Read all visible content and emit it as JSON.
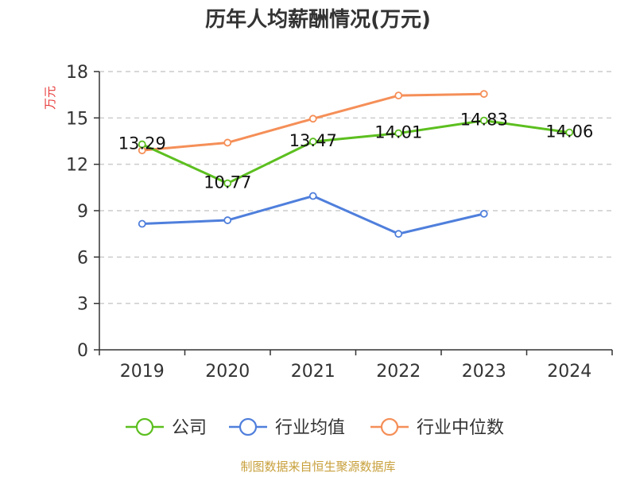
{
  "chart_data": {
    "type": "line",
    "title": "历年人均薪酬情况(万元)",
    "ylabel": "万元",
    "ylim": [
      0,
      18
    ],
    "yticks": [
      0,
      3,
      6,
      9,
      12,
      15,
      18
    ],
    "categories": [
      "2019",
      "2020",
      "2021",
      "2022",
      "2023",
      "2024"
    ],
    "grid": true,
    "legend_position": "bottom",
    "series": [
      {
        "name": "公司",
        "color": "#5cbf1f",
        "values": [
          13.29,
          10.77,
          13.47,
          14.01,
          14.83,
          14.06
        ],
        "labels": [
          "13.29",
          "10.77",
          "13.47",
          "14.01",
          "14.83",
          "14.06"
        ]
      },
      {
        "name": "行业均值",
        "color": "#4f7fdc",
        "values": [
          8.15,
          8.38,
          9.95,
          7.5,
          8.8,
          null
        ]
      },
      {
        "name": "行业中位数",
        "color": "#f58f58",
        "values": [
          12.9,
          13.4,
          14.95,
          16.45,
          16.55,
          null
        ]
      }
    ],
    "unit_color": "#e83a3a",
    "source": "制图数据来自恒生聚源数据库",
    "source_color": "#c8a03c"
  }
}
